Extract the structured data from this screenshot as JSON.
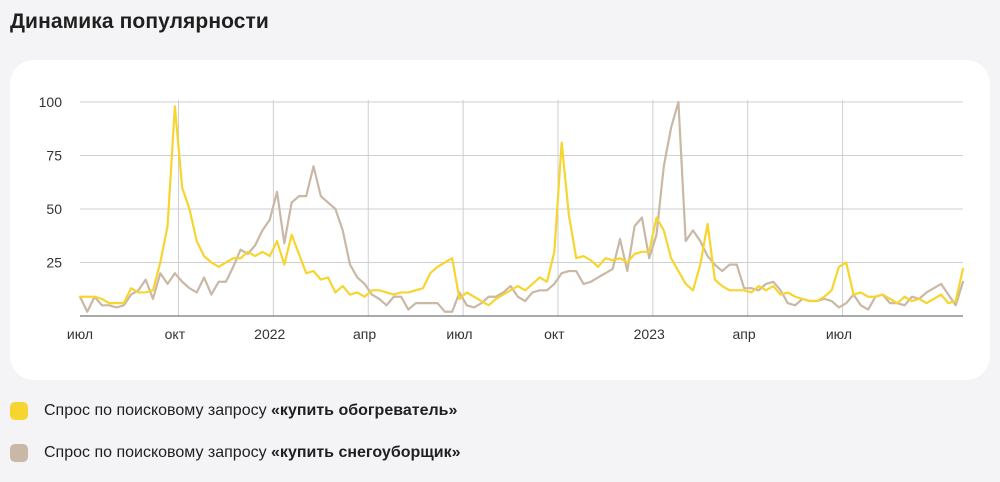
{
  "title": "Динамика популярности",
  "colors": {
    "series1": "#f7d531",
    "series2": "#c9b8a6",
    "grid": "#cfcfcf",
    "axis": "#555555"
  },
  "legend": [
    {
      "prefix": "Спрос по поисковому запросу ",
      "query": "«купить обогреватель»"
    },
    {
      "prefix": "Спрос по поисковому запросу ",
      "query": "«купить снегоуборщик»"
    }
  ],
  "chart_data": {
    "type": "line",
    "x_unit": "week",
    "ylim": [
      0,
      100
    ],
    "y_ticks": [
      25,
      50,
      75,
      100
    ],
    "x_ticks": [
      {
        "label": "июл",
        "week": 0
      },
      {
        "label": "окт",
        "week": 13
      },
      {
        "label": "2022",
        "week": 26
      },
      {
        "label": "апр",
        "week": 39
      },
      {
        "label": "июл",
        "week": 52
      },
      {
        "label": "окт",
        "week": 65
      },
      {
        "label": "2023",
        "week": 78
      },
      {
        "label": "апр",
        "week": 91
      },
      {
        "label": "июл",
        "week": 104
      }
    ],
    "vertical_grid_weeks": [
      13.5,
      26.5,
      39.5,
      52.5,
      65.5,
      78.5,
      91.5,
      104.5
    ],
    "series": [
      {
        "color_key": "series1",
        "values": [
          9,
          9,
          9,
          8,
          6,
          6,
          6,
          13,
          11,
          11,
          12,
          25,
          42,
          98,
          60,
          50,
          35,
          28,
          25,
          23,
          25,
          27,
          27,
          30,
          28,
          30,
          28,
          35,
          24,
          38,
          29,
          20,
          21,
          17,
          18,
          11,
          14,
          10,
          11,
          9,
          12,
          12,
          11,
          10,
          11,
          11,
          12,
          13,
          20,
          23,
          25,
          27,
          8,
          11,
          9,
          7,
          5,
          8,
          10,
          12,
          14,
          12,
          15,
          18,
          16,
          30,
          81,
          47,
          27,
          28,
          26,
          23,
          27,
          26,
          27,
          25,
          29,
          30,
          30,
          46,
          40,
          27,
          21,
          15,
          12,
          24,
          43,
          17,
          14,
          12,
          12,
          12,
          11,
          14,
          12,
          14,
          10,
          11,
          9,
          8,
          7,
          7,
          9,
          12,
          23,
          25,
          10,
          11,
          9,
          9,
          10,
          8,
          6,
          9,
          7,
          8,
          6,
          8,
          10,
          6,
          7,
          22
        ]
      },
      {
        "color_key": "series2",
        "values": [
          9,
          2,
          9,
          5,
          5,
          4,
          5,
          10,
          12,
          17,
          8,
          20,
          15,
          20,
          16,
          13,
          11,
          18,
          10,
          16,
          16,
          23,
          31,
          29,
          33,
          40,
          45,
          58,
          34,
          53,
          56,
          56,
          70,
          56,
          53,
          50,
          40,
          24,
          18,
          15,
          10,
          8,
          5,
          9,
          9,
          3,
          6,
          6,
          6,
          6,
          2,
          2,
          11,
          5,
          4,
          6,
          9,
          9,
          11,
          14,
          9,
          7,
          11,
          12,
          12,
          15,
          20,
          21,
          21,
          15,
          16,
          18,
          20,
          22,
          36,
          21,
          42,
          46,
          27,
          38,
          70,
          88,
          100,
          35,
          40,
          35,
          28,
          24,
          21,
          24,
          24,
          13,
          13,
          12,
          15,
          16,
          12,
          6,
          5,
          8,
          7,
          7,
          8,
          7,
          4,
          6,
          10,
          5,
          3,
          9,
          10,
          6,
          6,
          5,
          9,
          8,
          11,
          13,
          15,
          10,
          5,
          16
        ]
      }
    ]
  }
}
